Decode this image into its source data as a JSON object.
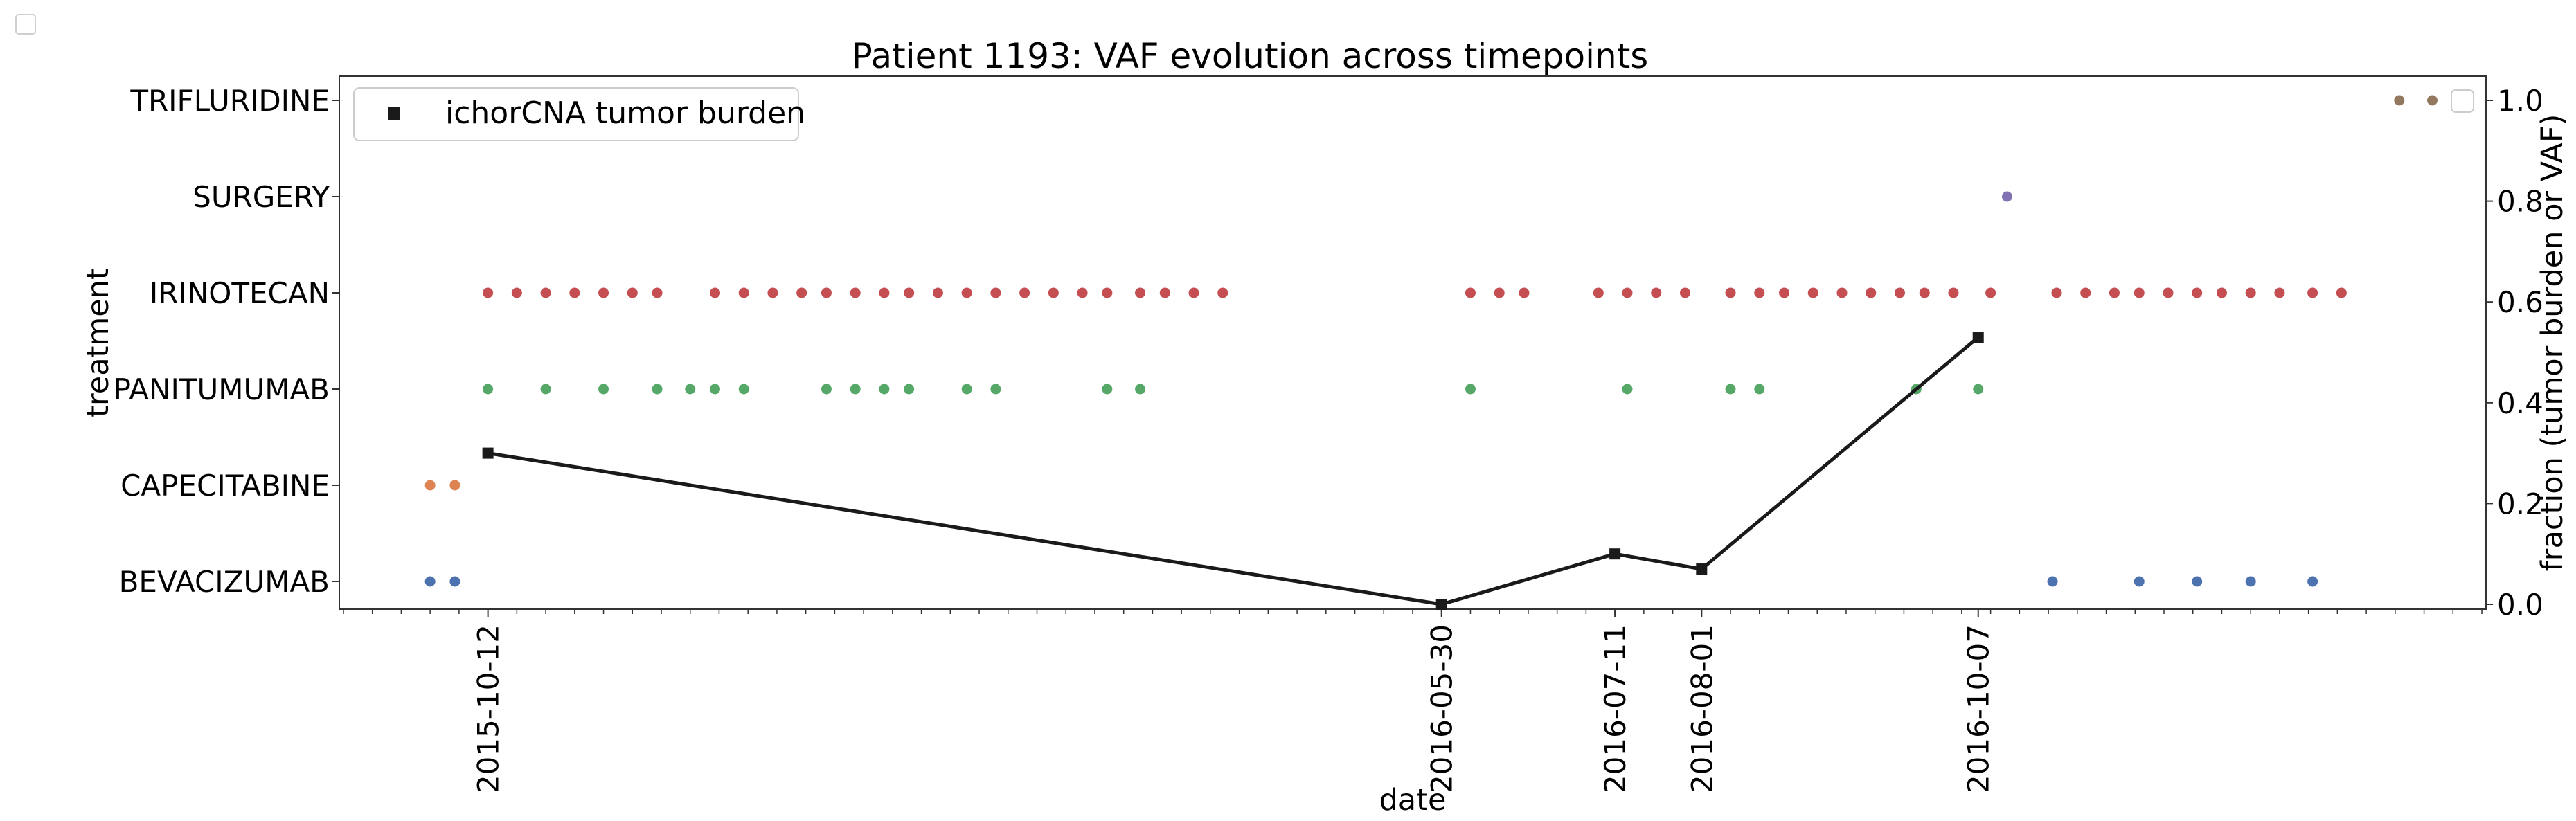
{
  "chart_data": {
    "type": "scatter",
    "title": "Patient 1193: VAF evolution across timepoints",
    "xlabel": "date",
    "ylabel": "treatment",
    "ylabel_right": "fraction (tumor burden or VAF)",
    "x_range": [
      "2015-09-06",
      "2017-02-07"
    ],
    "y_right_range": [
      0.0,
      1.0
    ],
    "y_right_ticks": [
      "0.0",
      "0.2",
      "0.4",
      "0.6",
      "0.8",
      "1.0"
    ],
    "x_tick_labels": [
      "2015-10-12",
      "2016-05-30",
      "2016-07-11",
      "2016-08-01",
      "2016-10-07"
    ],
    "grid": false,
    "legend": {
      "position": "top-left",
      "entries": [
        {
          "label": "ichorCNA tumor burden",
          "marker": "square",
          "color": "#1a1a1a"
        }
      ]
    },
    "treatments": [
      {
        "name": "BEVACIZUMAB",
        "color": "#4c72b0",
        "dates": [
          "2015-09-28",
          "2015-10-04",
          "2016-10-25",
          "2016-11-15",
          "2016-11-29",
          "2016-12-12",
          "2016-12-27"
        ]
      },
      {
        "name": "CAPECITABINE",
        "color": "#dd8452",
        "dates": [
          "2015-09-28",
          "2015-10-04"
        ]
      },
      {
        "name": "PANITUMUMAB",
        "color": "#55a868",
        "dates": [
          "2015-10-12",
          "2015-10-26",
          "2015-11-09",
          "2015-11-22",
          "2015-11-30",
          "2015-12-06",
          "2015-12-13",
          "2016-01-02",
          "2016-01-09",
          "2016-01-16",
          "2016-01-22",
          "2016-02-05",
          "2016-02-12",
          "2016-03-10",
          "2016-03-18",
          "2016-06-06",
          "2016-07-14",
          "2016-08-08",
          "2016-08-15",
          "2016-09-22",
          "2016-10-07"
        ]
      },
      {
        "name": "IRINOTECAN",
        "color": "#c44e52",
        "dates": [
          "2015-10-12",
          "2015-10-19",
          "2015-10-26",
          "2015-11-02",
          "2015-11-09",
          "2015-11-16",
          "2015-11-22",
          "2015-12-06",
          "2015-12-13",
          "2015-12-20",
          "2015-12-27",
          "2016-01-02",
          "2016-01-09",
          "2016-01-16",
          "2016-01-22",
          "2016-01-29",
          "2016-02-05",
          "2016-02-12",
          "2016-02-19",
          "2016-02-26",
          "2016-03-04",
          "2016-03-10",
          "2016-03-18",
          "2016-03-24",
          "2016-03-31",
          "2016-04-07",
          "2016-06-06",
          "2016-06-13",
          "2016-06-19",
          "2016-07-07",
          "2016-07-14",
          "2016-07-21",
          "2016-07-28",
          "2016-08-08",
          "2016-08-15",
          "2016-08-21",
          "2016-08-28",
          "2016-09-04",
          "2016-09-11",
          "2016-09-18",
          "2016-09-24",
          "2016-10-01",
          "2016-10-10",
          "2016-10-26",
          "2016-11-02",
          "2016-11-09",
          "2016-11-15",
          "2016-11-22",
          "2016-11-29",
          "2016-12-05",
          "2016-12-12",
          "2016-12-19",
          "2016-12-27",
          "2017-01-03"
        ]
      },
      {
        "name": "SURGERY",
        "color": "#8172b3",
        "dates": [
          "2016-10-14"
        ]
      },
      {
        "name": "TRIFLURIDINE",
        "color": "#937860",
        "dates": [
          "2017-01-17",
          "2017-01-25"
        ]
      }
    ],
    "series": [
      {
        "name": "ichorCNA tumor burden",
        "color": "#1a1a1a",
        "x": [
          "2015-10-12",
          "2016-05-30",
          "2016-07-11",
          "2016-08-01",
          "2016-10-07"
        ],
        "y": [
          0.3,
          0.0,
          0.1,
          0.07,
          0.53
        ]
      }
    ]
  }
}
